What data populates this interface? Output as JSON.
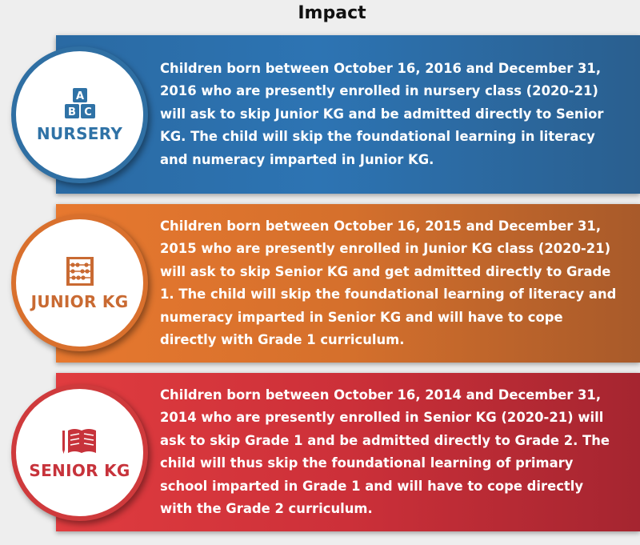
{
  "title": "Impact",
  "colors": {
    "nursery": "#2f72a6",
    "junior": "#e2712b",
    "senior": "#c7333b"
  },
  "panels": [
    {
      "label": "NURSERY",
      "icon": "abc-blocks-icon",
      "icon_letters": [
        "A",
        "B",
        "C"
      ],
      "text": "Children born between October 16, 2016 and December 31, 2016 who are presently enrolled in nursery class (2020-21) will ask to skip Junior KG and be admitted directly to Senior KG. The child will skip the foundational learning in literacy and numeracy imparted in Junior KG."
    },
    {
      "label": "JUNIOR KG",
      "icon": "abacus-icon",
      "text": "Children born between October 16, 2015 and December 31, 2015 who are presently enrolled in Junior KG class (2020-21) will ask to skip Senior KG and get admitted directly to Grade 1. The child will skip the foundational learning of literacy and numeracy imparted in Senior KG and will have to cope directly with Grade 1 curriculum."
    },
    {
      "label": "SENIOR KG",
      "icon": "book-pencil-icon",
      "text": "Children born between October 16, 2014 and December 31, 2014 who are presently enrolled in Senior KG (2020-21) will ask to skip Grade 1 and be admitted directly to Grade 2. The child will thus skip the foundational learning of primary school imparted in Grade 1 and will have to cope directly with the Grade 2 curriculum."
    }
  ]
}
